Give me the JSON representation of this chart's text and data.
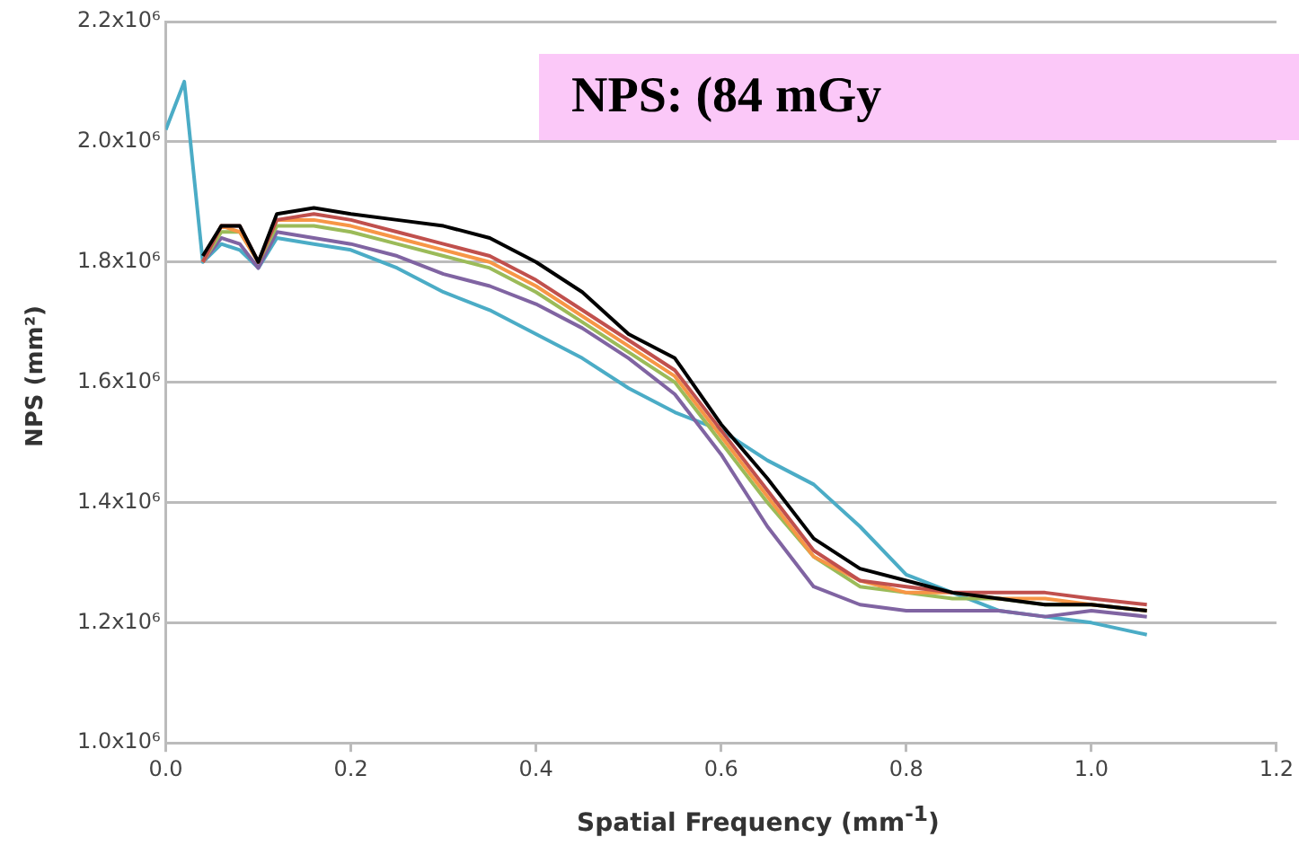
{
  "chart_data": {
    "type": "line",
    "title": "NPS: (84 mGy",
    "xlabel": "Spatial Frequency (mm$^{-1}$)",
    "ylabel": "NPS (mm²)",
    "x": [
      0,
      0.02,
      0.04,
      0.06,
      0.08,
      0.1,
      0.12,
      0.16,
      0.2,
      0.25,
      0.3,
      0.35,
      0.4,
      0.45,
      0.5,
      0.55,
      0.6,
      0.65,
      0.7,
      0.75,
      0.8,
      0.85,
      0.9,
      0.95,
      1.0,
      1.06
    ],
    "series": [
      {
        "color": "#000000",
        "values": [
          null,
          null,
          1810000,
          1860000,
          1860000,
          1800000,
          1880000,
          1890000,
          1880000,
          1870000,
          1860000,
          1840000,
          1800000,
          1750000,
          1680000,
          1640000,
          1530000,
          1440000,
          1340000,
          1290000,
          1270000,
          1250000,
          1240000,
          1230000,
          1230000,
          1220000
        ]
      },
      {
        "color": "#c0504d",
        "values": [
          null,
          null,
          1800000,
          1860000,
          1860000,
          1800000,
          1870000,
          1880000,
          1870000,
          1850000,
          1830000,
          1810000,
          1770000,
          1720000,
          1670000,
          1620000,
          1520000,
          1420000,
          1320000,
          1270000,
          1260000,
          1250000,
          1250000,
          1250000,
          1240000,
          1230000
        ]
      },
      {
        "color": "#f79646",
        "values": [
          null,
          null,
          1800000,
          1860000,
          1850000,
          1800000,
          1870000,
          1870000,
          1860000,
          1840000,
          1820000,
          1800000,
          1760000,
          1710000,
          1660000,
          1610000,
          1510000,
          1410000,
          1310000,
          1270000,
          1250000,
          1250000,
          1240000,
          1240000,
          1230000,
          1220000
        ]
      },
      {
        "color": "#9bbb59",
        "values": [
          null,
          null,
          1800000,
          1850000,
          1850000,
          1800000,
          1860000,
          1860000,
          1850000,
          1830000,
          1810000,
          1790000,
          1750000,
          1700000,
          1650000,
          1600000,
          1500000,
          1400000,
          1310000,
          1260000,
          1250000,
          1240000,
          1240000,
          1230000,
          1230000,
          1220000
        ]
      },
      {
        "color": "#8064a2",
        "values": [
          null,
          null,
          1800000,
          1840000,
          1830000,
          1790000,
          1850000,
          1840000,
          1830000,
          1810000,
          1780000,
          1760000,
          1730000,
          1690000,
          1640000,
          1580000,
          1480000,
          1360000,
          1260000,
          1230000,
          1220000,
          1220000,
          1220000,
          1210000,
          1220000,
          1210000
        ]
      },
      {
        "color": "#4bacc6",
        "values": [
          2020000,
          2100000,
          1800000,
          1830000,
          1820000,
          1790000,
          1840000,
          1830000,
          1820000,
          1790000,
          1750000,
          1720000,
          1680000,
          1640000,
          1590000,
          1550000,
          1520000,
          1470000,
          1430000,
          1360000,
          1280000,
          1250000,
          1220000,
          1210000,
          1200000,
          1180000
        ]
      }
    ],
    "xlim": [
      0,
      1.2
    ],
    "xticks": [
      {
        "value": 0,
        "label": "0.0"
      },
      0.2,
      0.4,
      0.6,
      0.8,
      {
        "value": 1,
        "label": "1.0"
      },
      1.2
    ],
    "ylim": [
      1000000,
      2200000
    ],
    "yticks": [
      {
        "value": 1000000,
        "label": "1.0x10⁶"
      },
      {
        "value": 1200000,
        "label": "1.2x10⁶"
      },
      {
        "value": 1400000,
        "label": "1.4x10⁶"
      },
      {
        "value": 1600000,
        "label": "1.6x10⁶"
      },
      {
        "value": 1800000,
        "label": "1.8x10⁶"
      },
      {
        "value": 2000000,
        "label": "2.0x10⁶"
      },
      {
        "value": 2200000,
        "label": "2.2x10⁶"
      }
    ],
    "grid": "y",
    "legend": false,
    "marker": "none",
    "line_style": "solid"
  }
}
